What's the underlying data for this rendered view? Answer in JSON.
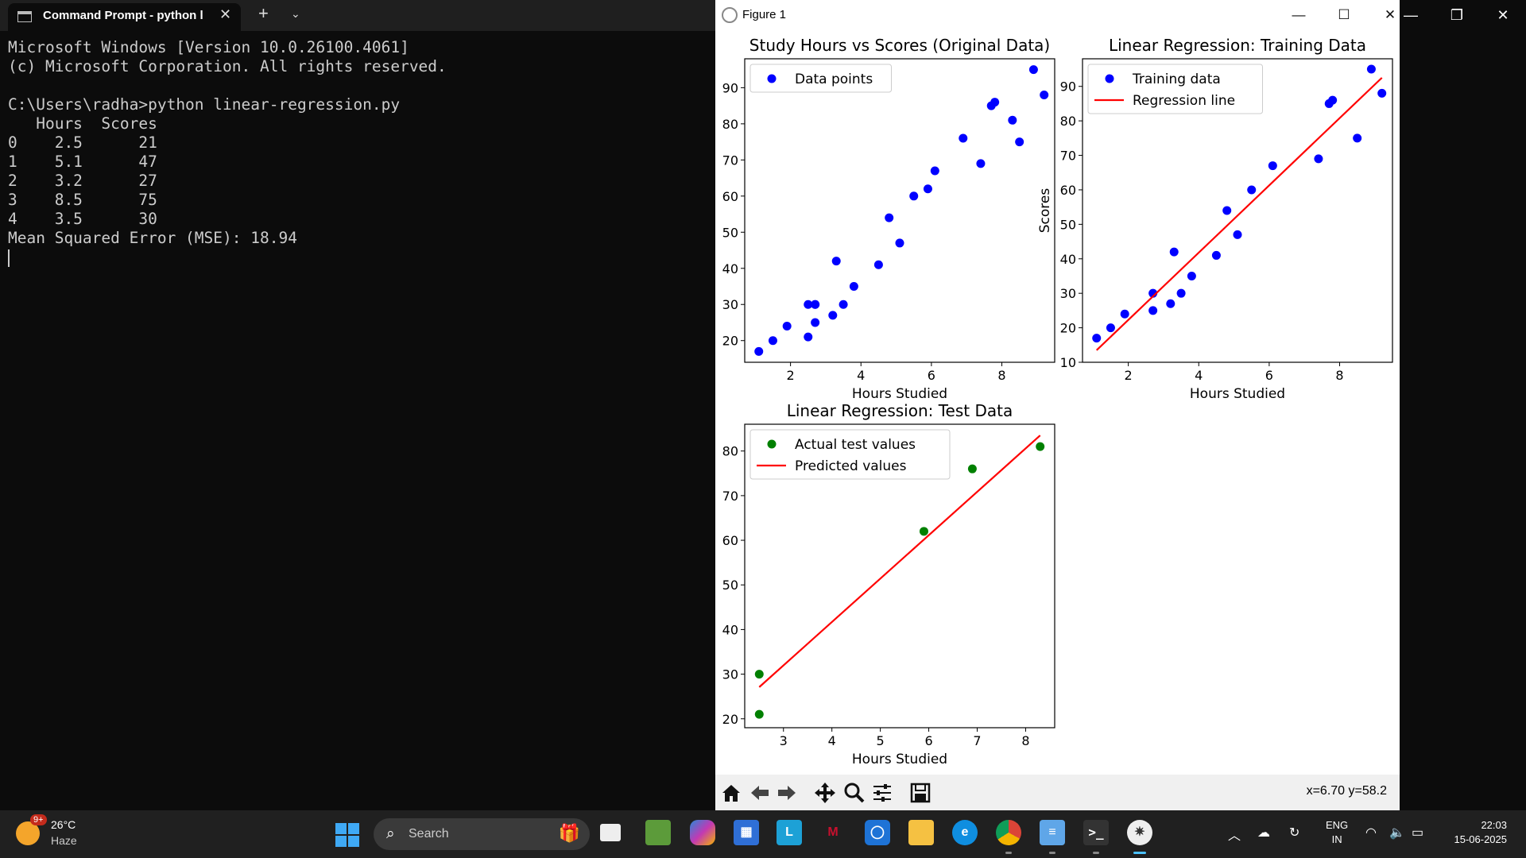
{
  "terminal": {
    "tab_title": "Command Prompt - python  l",
    "lines": [
      "Microsoft Windows [Version 10.0.26100.4061]",
      "(c) Microsoft Corporation. All rights reserved.",
      "",
      "C:\\Users\\radha>python linear-regression.py",
      "   Hours  Scores",
      "0    2.5      21",
      "1    5.1      47",
      "2    3.2      27",
      "3    8.5      75",
      "4    3.5      30",
      "Mean Squared Error (MSE): 18.94"
    ]
  },
  "figure": {
    "title": "Figure 1",
    "status": "x=6.70 y=58.2"
  },
  "chart_data": [
    {
      "type": "scatter",
      "title": "Study Hours vs Scores (Original Data)",
      "xlabel": "Hours Studied",
      "ylabel": "",
      "xlim": [
        0.7,
        9.5
      ],
      "ylim": [
        14,
        98
      ],
      "xticks": [
        2,
        4,
        6,
        8
      ],
      "yticks": [
        20,
        30,
        40,
        50,
        60,
        70,
        80,
        90
      ],
      "legend": "top-left",
      "series": [
        {
          "name": "Data points",
          "kind": "scatter",
          "color": "#0000ff",
          "x": [
            1.1,
            1.5,
            1.9,
            2.5,
            2.5,
            2.7,
            2.7,
            2.7,
            3.2,
            3.3,
            3.5,
            3.8,
            4.5,
            4.8,
            5.1,
            5.5,
            5.9,
            6.1,
            6.9,
            7.4,
            7.7,
            7.8,
            8.3,
            8.5,
            8.9,
            9.2
          ],
          "y": [
            17,
            20,
            24,
            21,
            30,
            25,
            30,
            30,
            27,
            42,
            30,
            35,
            41,
            54,
            47,
            60,
            62,
            67,
            76,
            69,
            85,
            86,
            81,
            75,
            95,
            88
          ]
        }
      ]
    },
    {
      "type": "scatter",
      "title": "Linear Regression: Training Data",
      "xlabel": "Hours Studied",
      "ylabel": "Scores",
      "xlim": [
        0.7,
        9.5
      ],
      "ylim": [
        10,
        98
      ],
      "xticks": [
        2,
        4,
        6,
        8
      ],
      "yticks": [
        10,
        20,
        30,
        40,
        50,
        60,
        70,
        80,
        90
      ],
      "legend": "top-left",
      "series": [
        {
          "name": "Training data",
          "kind": "scatter",
          "color": "#0000ff",
          "x": [
            1.1,
            1.5,
            1.9,
            2.7,
            2.7,
            3.2,
            3.3,
            3.5,
            3.8,
            4.5,
            4.8,
            5.1,
            5.5,
            6.1,
            7.4,
            7.7,
            7.8,
            8.5,
            8.9,
            9.2
          ],
          "y": [
            17,
            20,
            24,
            25,
            30,
            27,
            42,
            30,
            35,
            41,
            54,
            47,
            60,
            67,
            69,
            85,
            86,
            75,
            95,
            88
          ]
        },
        {
          "name": "Regression line",
          "kind": "line",
          "color": "#ff0000",
          "x": [
            1.1,
            9.2
          ],
          "y": [
            13.5,
            92.5
          ]
        }
      ]
    },
    {
      "type": "scatter",
      "title": "Linear Regression: Test Data",
      "xlabel": "Hours Studied",
      "ylabel": "",
      "xlim": [
        2.2,
        8.6
      ],
      "ylim": [
        18,
        86
      ],
      "xticks": [
        3,
        4,
        5,
        6,
        7,
        8
      ],
      "yticks": [
        20,
        30,
        40,
        50,
        60,
        70,
        80
      ],
      "legend": "top-left",
      "series": [
        {
          "name": "Actual test values",
          "kind": "scatter",
          "color": "#008000",
          "x": [
            2.5,
            2.5,
            5.9,
            6.9,
            8.3
          ],
          "y": [
            21,
            30,
            62,
            76,
            81
          ]
        },
        {
          "name": "Predicted values",
          "kind": "line",
          "color": "#ff0000",
          "x": [
            2.5,
            8.3
          ],
          "y": [
            27.1,
            83.5
          ]
        }
      ]
    }
  ],
  "taskbar": {
    "weather_badge": "9+",
    "temperature": "26°C",
    "condition": "Haze",
    "search_placeholder": "Search",
    "lang_top": "ENG",
    "lang_bottom": "IN",
    "time": "22:03",
    "date": "15-06-2025"
  }
}
